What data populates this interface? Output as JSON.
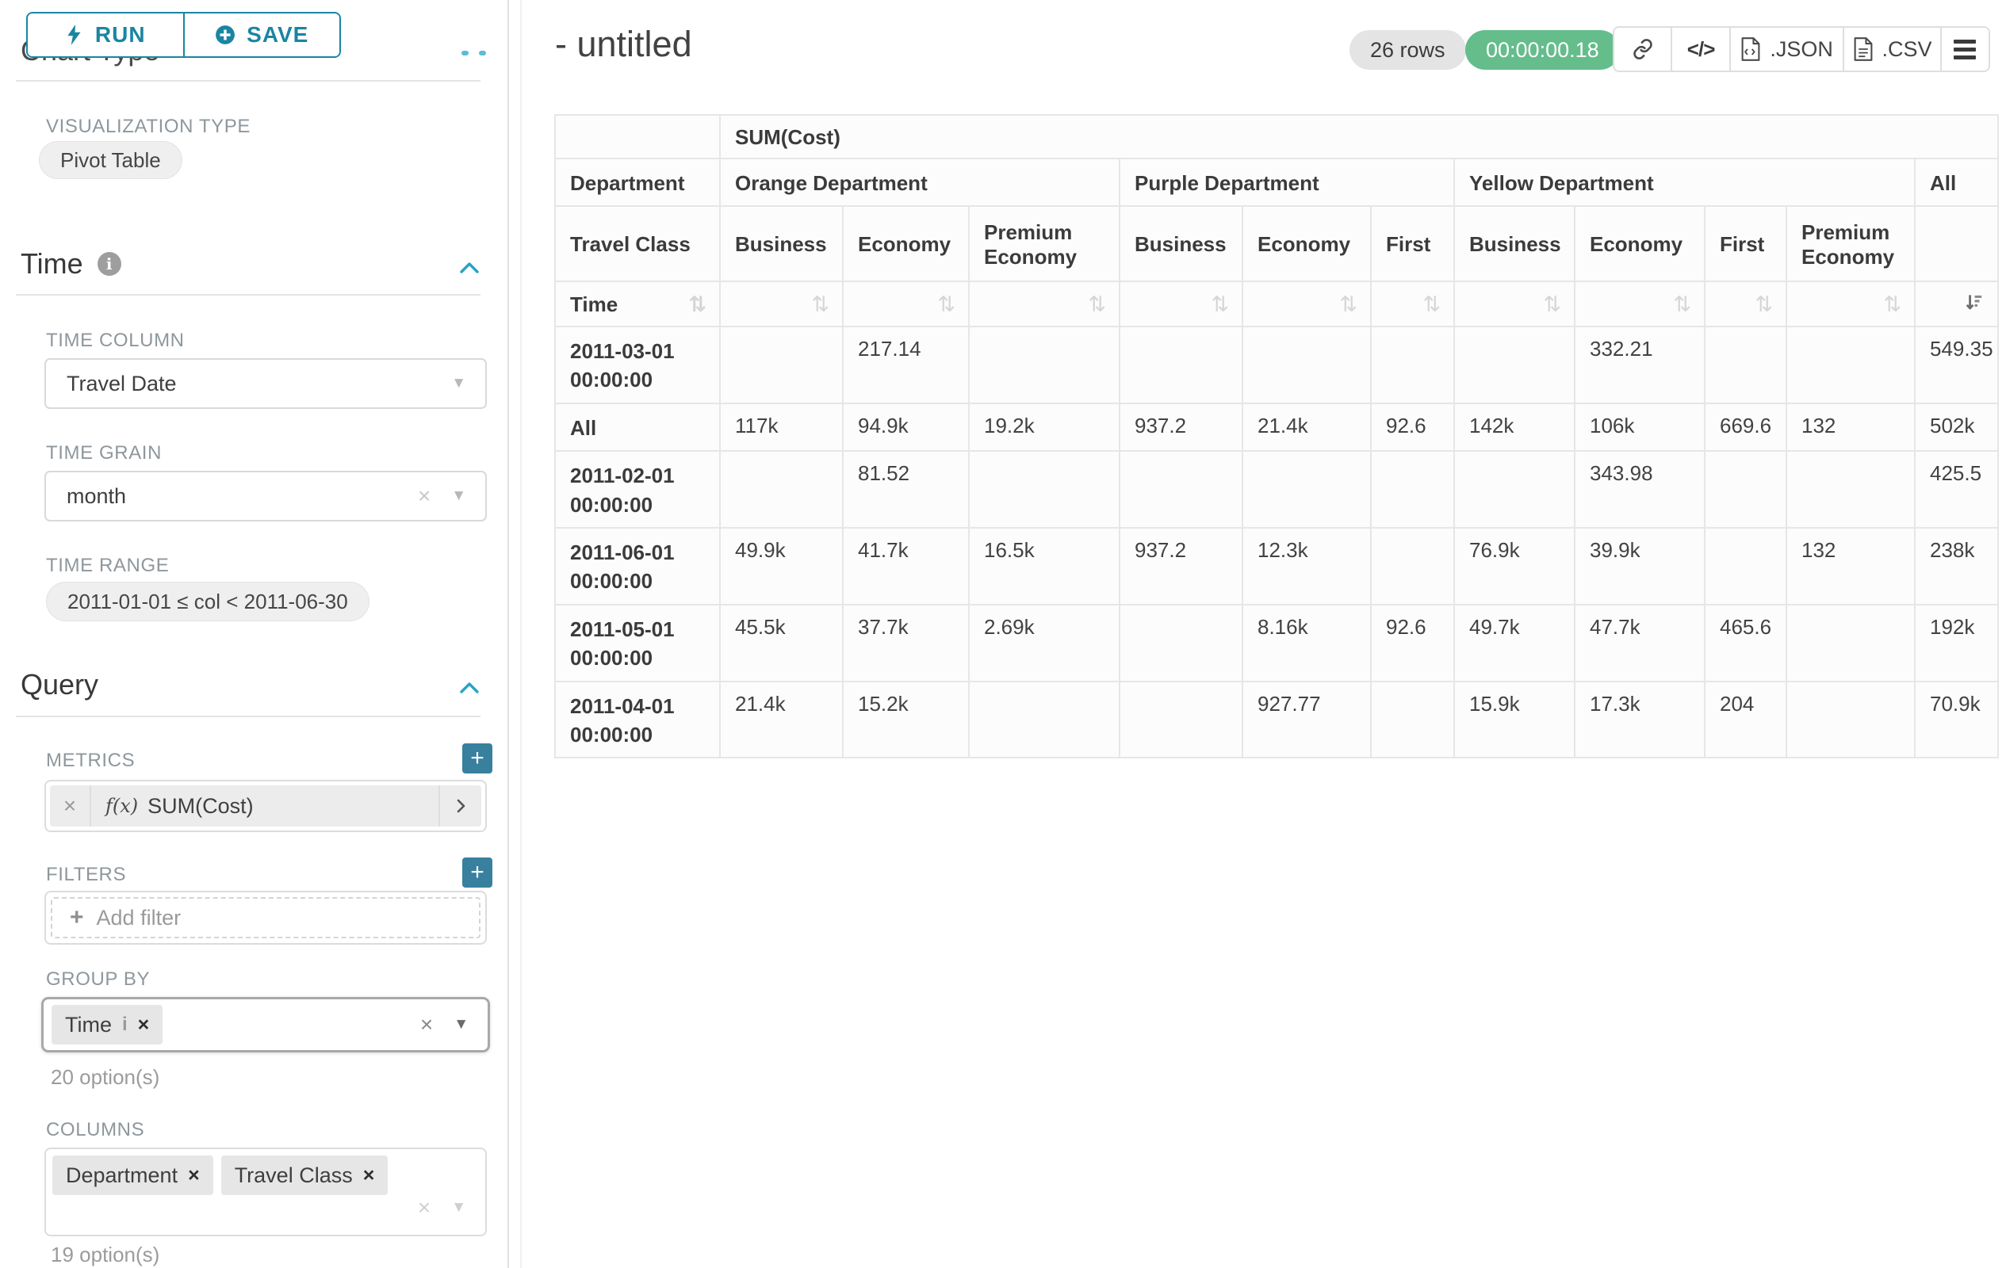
{
  "glyphs": {
    "sort": "⇅",
    "caret": "▼",
    "close": "×",
    "info": "i",
    "code": "</>",
    "plus": "+",
    "fx": "f(x)"
  },
  "icons": {
    "run": "lightning-bolt",
    "save": "plus-circle",
    "time_info": "info-circle",
    "collapse": "chevron-up",
    "add": "plus-square",
    "metric_fn": "fx",
    "metric_expand": "chevron-right",
    "chip_remove": "close-x",
    "select_caret": "caret-down",
    "select_clear": "close-x",
    "share": "link",
    "embed": "code-brackets",
    "export_json": "file-json",
    "export_csv": "file-csv",
    "more": "hamburger-menu",
    "sort": "sort-arrows",
    "sort_active": "sort-amount-down"
  },
  "colors": {
    "accent_teal": "#1a85a2",
    "add_button_teal": "#38809e",
    "chevron_blue": "#27a3c6",
    "timer_green": "#65bd8c"
  },
  "sidebar": {
    "run_label": "RUN",
    "save_label": "SAVE",
    "chart_type": {
      "title": "Chart Type",
      "viz_label": "VISUALIZATION TYPE",
      "viz_value": "Pivot Table"
    },
    "time": {
      "title": "Time",
      "column_label": "TIME COLUMN",
      "column_value": "Travel Date",
      "grain_label": "TIME GRAIN",
      "grain_value": "month",
      "range_label": "TIME RANGE",
      "range_value": "2011-01-01 ≤ col < 2011-06-30"
    },
    "query": {
      "title": "Query",
      "metrics_label": "METRICS",
      "metric_value": "SUM(Cost)",
      "filters_label": "FILTERS",
      "add_filter": "Add filter",
      "group_by_label": "GROUP BY",
      "group_by_chip": "Time",
      "group_by_options": "20 option(s)",
      "columns_label": "COLUMNS",
      "columns_chips": [
        "Department",
        "Travel Class"
      ],
      "columns_options": "19 option(s)"
    }
  },
  "header": {
    "title": "- untitled",
    "rows_badge": "26 rows",
    "timer": "00:00:00.18",
    "export_json": ".JSON",
    "export_csv": ".CSV"
  },
  "table": {
    "metric_header": "SUM(Cost)",
    "corner": {
      "department": "Department",
      "travel_class": "Travel Class",
      "time": "Time"
    },
    "col_groups": [
      {
        "label": "Orange Department",
        "span": 3
      },
      {
        "label": "Purple Department",
        "span": 3
      },
      {
        "label": "Yellow Department",
        "span": 4
      },
      {
        "label": "All",
        "span": 1
      }
    ],
    "col_headers": [
      "Business",
      "Economy",
      "Premium Economy",
      "Business",
      "Economy",
      "First",
      "Business",
      "Economy",
      "First",
      "Premium Economy",
      ""
    ],
    "sort": {
      "active_column": "All",
      "direction": "desc"
    },
    "rows": [
      {
        "label": "2011-03-01 00:00:00",
        "cells": [
          "",
          "217.14",
          "",
          "",
          "",
          "",
          "",
          "332.21",
          "",
          "",
          "549.35"
        ]
      },
      {
        "label": "All",
        "cells": [
          "117k",
          "94.9k",
          "19.2k",
          "937.2",
          "21.4k",
          "92.6",
          "142k",
          "106k",
          "669.6",
          "132",
          "502k"
        ]
      },
      {
        "label": "2011-02-01 00:00:00",
        "cells": [
          "",
          "81.52",
          "",
          "",
          "",
          "",
          "",
          "343.98",
          "",
          "",
          "425.5"
        ]
      },
      {
        "label": "2011-06-01 00:00:00",
        "cells": [
          "49.9k",
          "41.7k",
          "16.5k",
          "937.2",
          "12.3k",
          "",
          "76.9k",
          "39.9k",
          "",
          "132",
          "238k"
        ]
      },
      {
        "label": "2011-05-01 00:00:00",
        "cells": [
          "45.5k",
          "37.7k",
          "2.69k",
          "",
          "8.16k",
          "92.6",
          "49.7k",
          "47.7k",
          "465.6",
          "",
          "192k"
        ]
      },
      {
        "label": "2011-04-01 00:00:00",
        "cells": [
          "21.4k",
          "15.2k",
          "",
          "",
          "927.77",
          "",
          "15.9k",
          "17.3k",
          "204",
          "",
          "70.9k"
        ]
      }
    ]
  }
}
